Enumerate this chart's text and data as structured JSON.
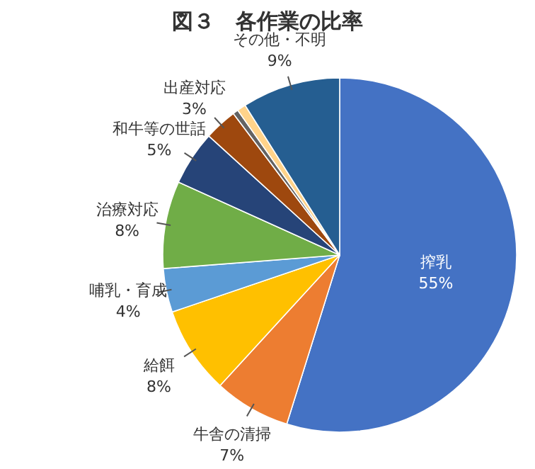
{
  "chart_data": {
    "type": "pie",
    "title": "図３　各作業の比率",
    "categories": [
      "搾乳",
      "牛舎の清掃",
      "給餌",
      "哺乳・育成",
      "治療対応",
      "和牛等の世話",
      "出産対応",
      null,
      null,
      "その他・不明"
    ],
    "values": [
      55,
      7,
      8,
      4,
      8,
      5,
      3,
      0.5,
      0.8,
      9
    ],
    "colors": [
      "#4472c4",
      "#ed7d31",
      "#ffc000",
      "#5b9bd5",
      "#70ad47",
      "#264478",
      "#9e480e",
      "#636363",
      "#ffd38a",
      "#255e91"
    ],
    "value_labels": [
      "55%",
      "7%",
      "8%",
      "4%",
      "8%",
      "5%",
      "3%",
      null,
      null,
      "9%"
    ]
  }
}
